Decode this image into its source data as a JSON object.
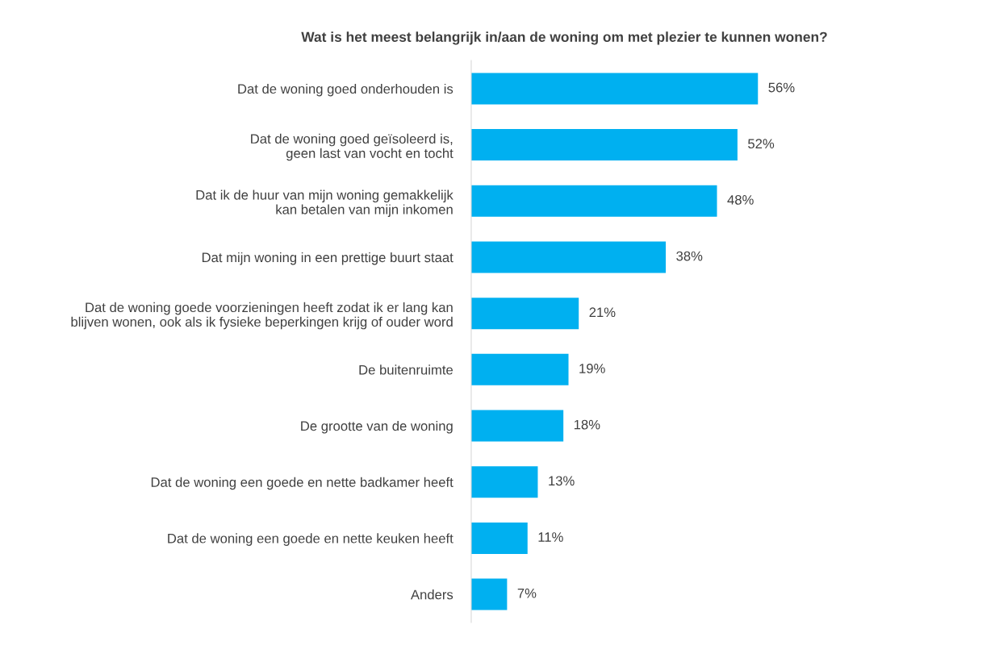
{
  "chart_data": {
    "type": "bar",
    "orientation": "horizontal",
    "title": "Wat is het meest belangrijk in/aan de woning om met plezier te kunnen wonen?",
    "categories": [
      "Dat de woning goed onderhouden is",
      "Dat de woning goed geïsoleerd is,\ngeen last van vocht en tocht",
      "Dat ik de huur van mijn woning gemakkelijk\nkan betalen van mijn inkomen",
      "Dat mijn woning in een prettige buurt staat",
      "Dat de woning goede voorzieningen heeft zodat ik er lang kan\nblijven wonen, ook als ik fysieke beperkingen krijg of ouder word",
      "De buitenruimte",
      "De grootte van de woning",
      "Dat de woning een goede en nette badkamer heeft",
      "Dat de woning een goede en nette keuken heeft",
      "Anders"
    ],
    "values": [
      56,
      52,
      48,
      38,
      21,
      19,
      18,
      13,
      11,
      7
    ],
    "value_labels": [
      "56%",
      "52%",
      "48%",
      "38%",
      "21%",
      "19%",
      "18%",
      "13%",
      "11%",
      "7%"
    ],
    "color": "#00b0f0",
    "grid": false,
    "legend": false
  }
}
